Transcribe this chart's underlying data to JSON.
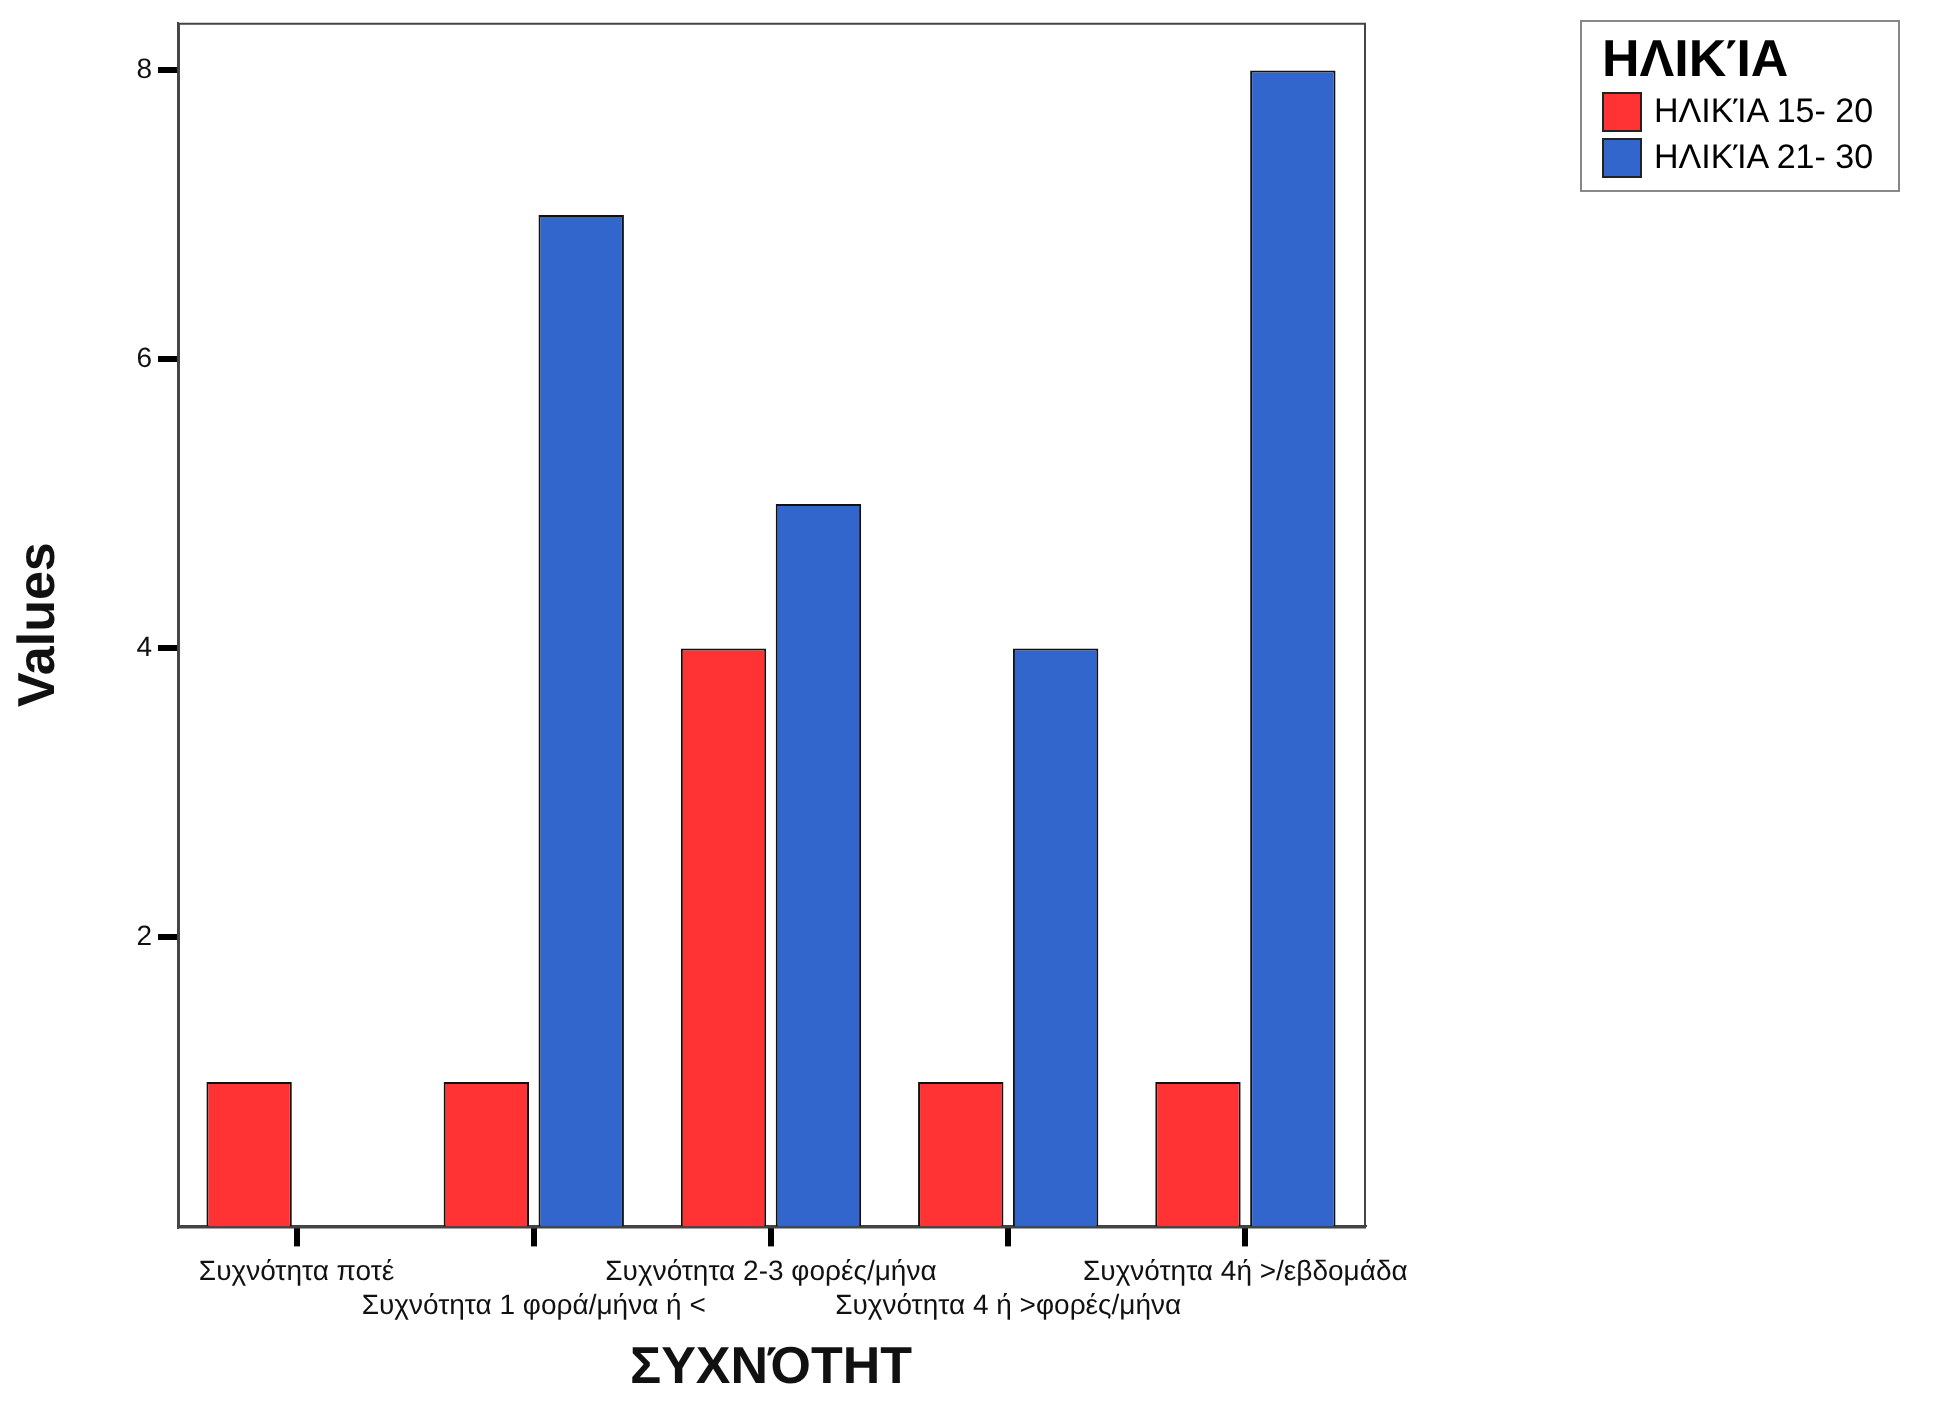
{
  "chart_data": {
    "type": "bar",
    "xlabel": "ΣΥΧΝΌΤΗΤ",
    "ylabel": "Values",
    "legend_title": "ΗΛΙΚΊΑ",
    "legend": "top right",
    "grid": false,
    "categories": [
      "Συχνότητα ποτέ",
      "Συχνότητα 1 φορά/μήνα ή <",
      "Συχνότητα 2-3 φορές/μήνα",
      "Συχνότητα 4 ή >φορές/μήνα",
      "Συχνότητα 4ή >/εβδομάδα"
    ],
    "series": [
      {
        "name": "ΗΛΙΚΊΑ 15- 20",
        "color": "#ff3333",
        "values": [
          1,
          1,
          4,
          1,
          1
        ]
      },
      {
        "name": "ΗΛΙΚΊΑ 21- 30",
        "color": "#3366cc",
        "values": [
          null,
          7,
          5,
          4,
          8
        ]
      }
    ],
    "ylim": [
      0,
      8.33
    ],
    "yticks": [
      2,
      4,
      6,
      8
    ]
  }
}
